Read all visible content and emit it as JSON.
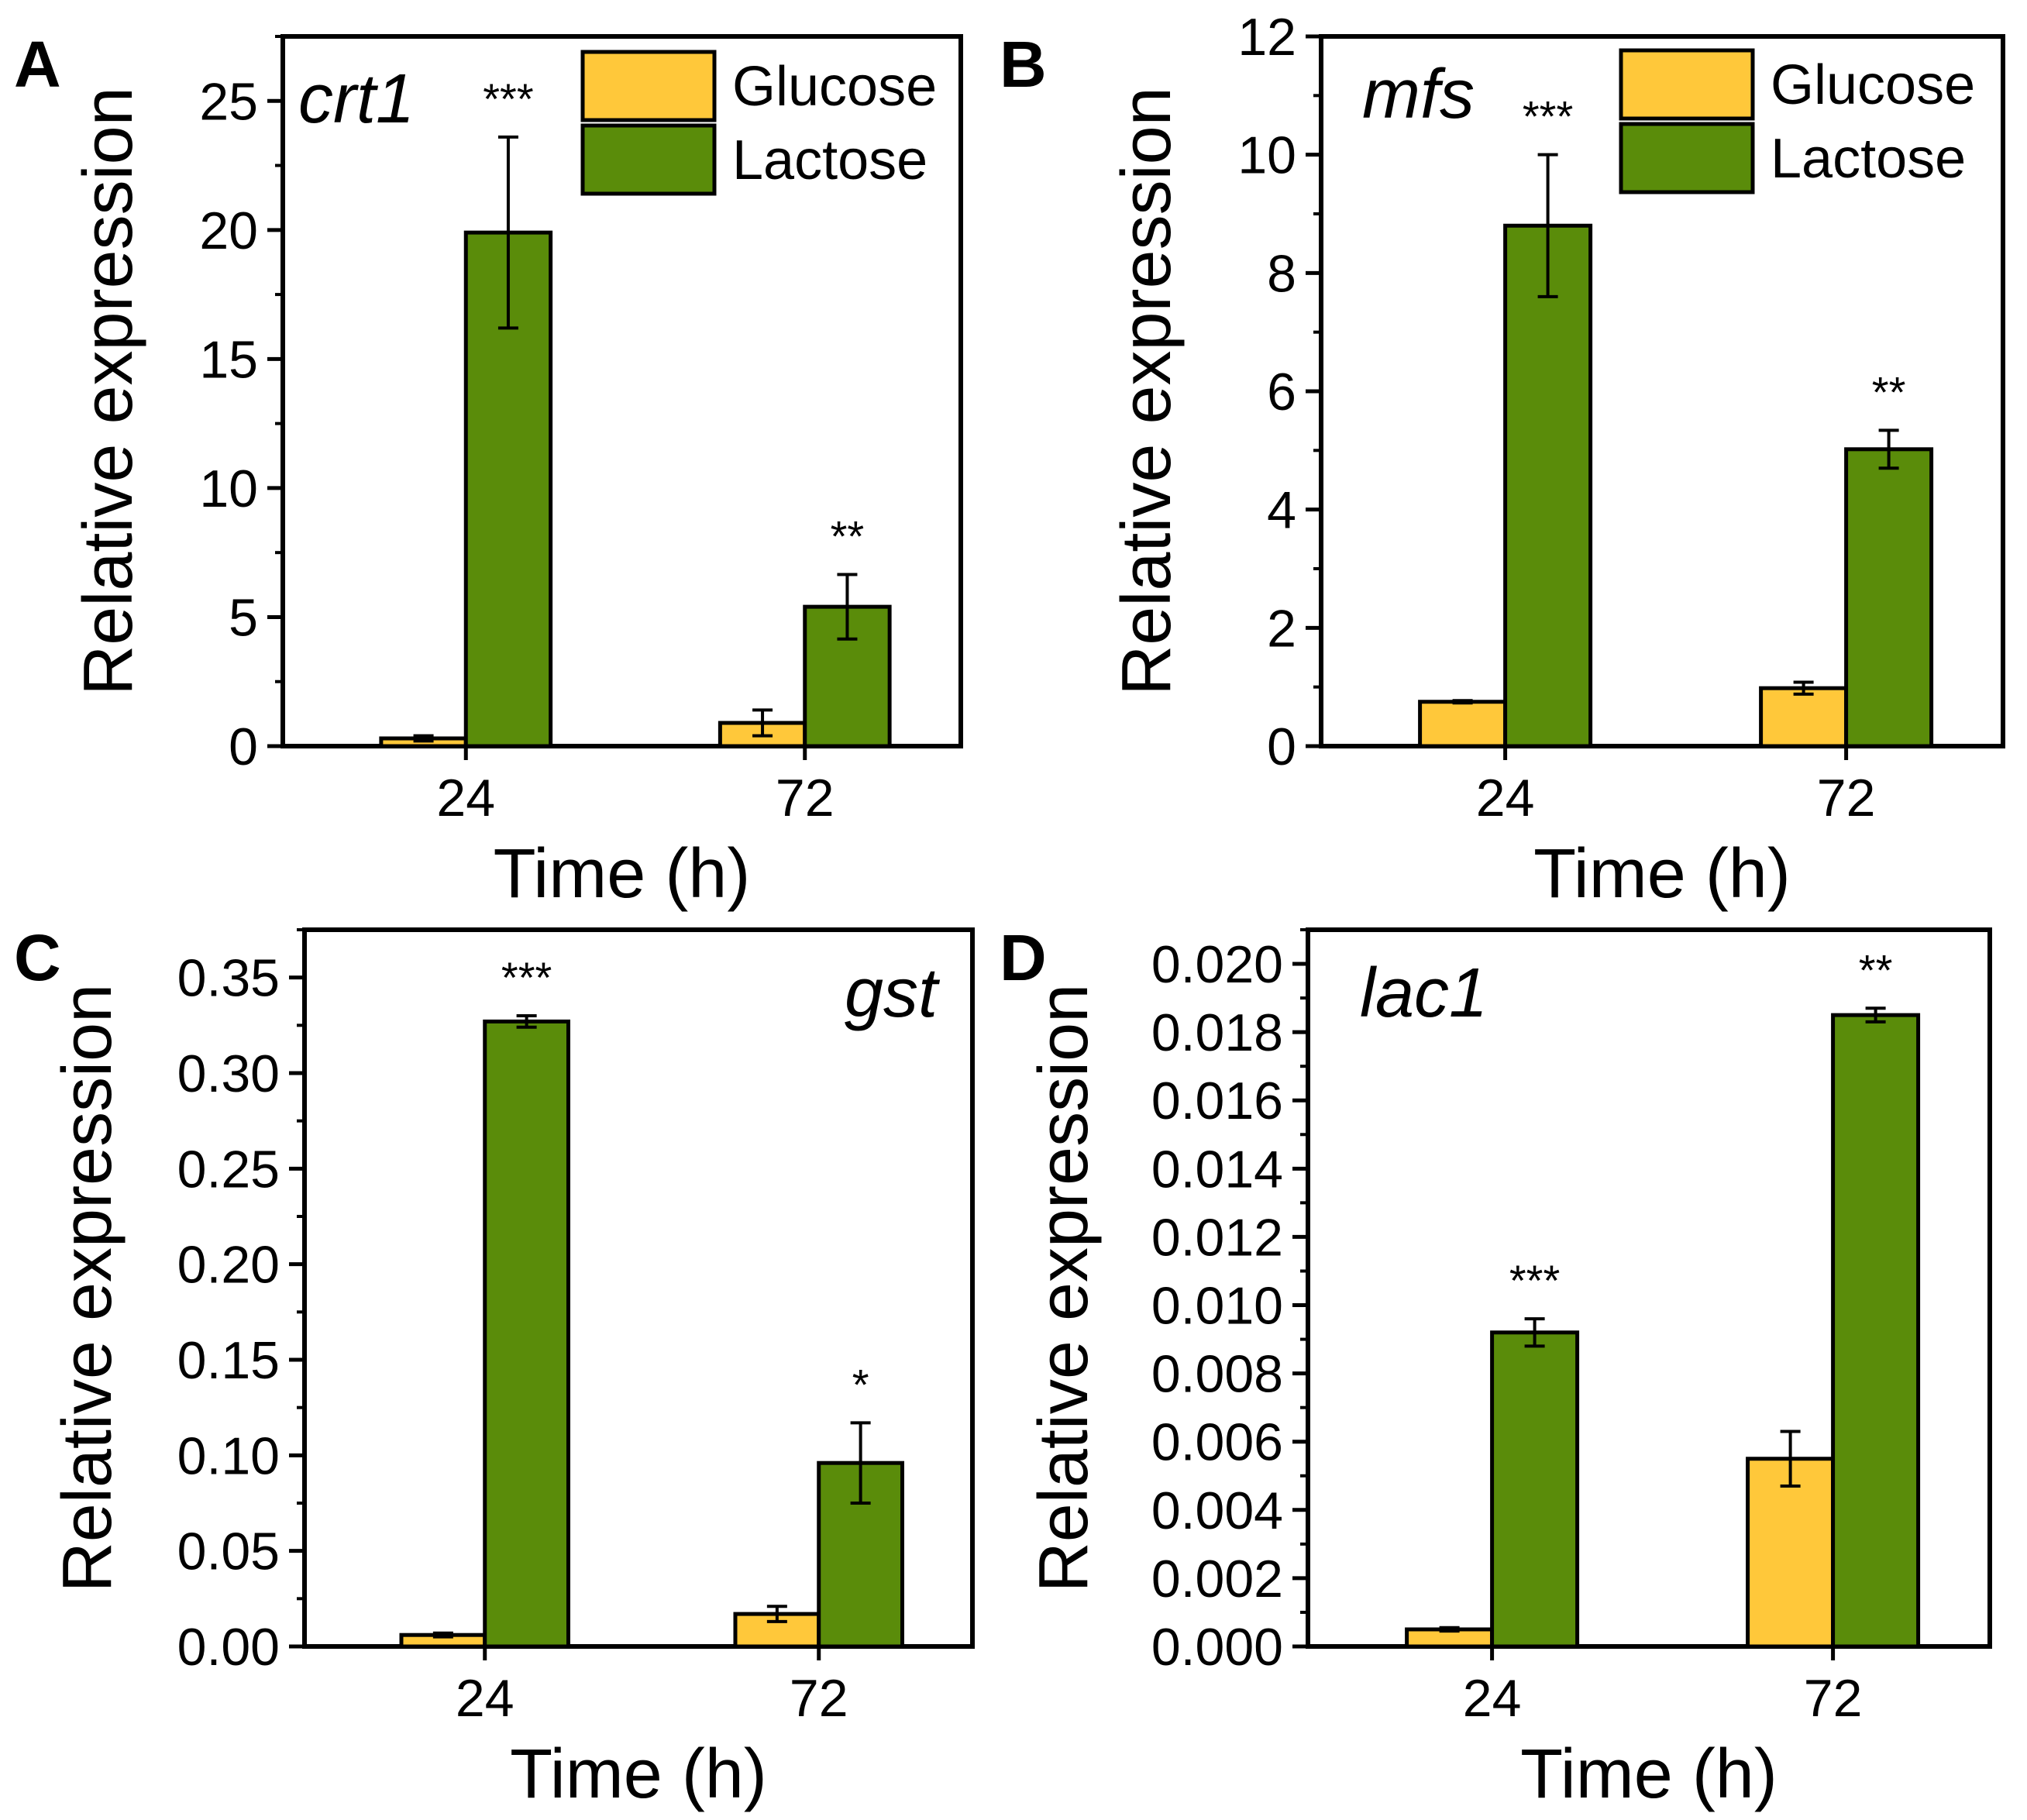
{
  "colors": {
    "glucose": "#FFC83A",
    "lactose": "#5A8C0A",
    "axis": "#000000"
  },
  "legend": {
    "glucose": "Glucose",
    "lactose": "Lactose"
  },
  "chart_data": [
    {
      "panel": "A",
      "type": "bar",
      "gene": "crt1",
      "xlabel": "Time (h)",
      "ylabel": "Relative expression",
      "categories": [
        "24",
        "72"
      ],
      "ylim": [
        0,
        27.5
      ],
      "yticks": [
        "0",
        "5",
        "10",
        "15",
        "20",
        "25"
      ],
      "ytick_values": [
        0,
        5,
        10,
        15,
        20,
        25
      ],
      "minor_step": 2.5,
      "series": [
        {
          "name": "Glucose",
          "values": [
            0.3,
            0.9
          ],
          "errors": [
            0.1,
            0.5
          ]
        },
        {
          "name": "Lactose",
          "values": [
            19.9,
            5.4
          ],
          "errors": [
            3.7,
            1.25
          ]
        }
      ],
      "significance": [
        "***",
        "**"
      ],
      "legend": true,
      "gene_position": "left"
    },
    {
      "panel": "B",
      "type": "bar",
      "gene": "mfs",
      "xlabel": "Time (h)",
      "ylabel": "Relative expression",
      "categories": [
        "24",
        "72"
      ],
      "ylim": [
        0,
        12
      ],
      "yticks": [
        "0",
        "2",
        "4",
        "6",
        "8",
        "10",
        "12"
      ],
      "ytick_values": [
        0,
        2,
        4,
        6,
        8,
        10,
        12
      ],
      "minor_step": 1,
      "series": [
        {
          "name": "Glucose",
          "values": [
            0.75,
            0.98
          ],
          "errors": [
            0.02,
            0.1
          ]
        },
        {
          "name": "Lactose",
          "values": [
            8.8,
            5.02
          ],
          "errors": [
            1.2,
            0.32
          ]
        }
      ],
      "significance": [
        "***",
        "**"
      ],
      "legend": true,
      "gene_position": "left"
    },
    {
      "panel": "C",
      "type": "bar",
      "gene": "gst",
      "xlabel": "Time (h)",
      "ylabel": "Relative expression",
      "categories": [
        "24",
        "72"
      ],
      "ylim": [
        0,
        0.375
      ],
      "yticks": [
        "0.00",
        "0.05",
        "0.10",
        "0.15",
        "0.20",
        "0.25",
        "0.30",
        "0.35"
      ],
      "ytick_values": [
        0,
        0.05,
        0.1,
        0.15,
        0.2,
        0.25,
        0.3,
        0.35
      ],
      "minor_step": 0.025,
      "series": [
        {
          "name": "Glucose",
          "values": [
            0.006,
            0.017
          ],
          "errors": [
            0.001,
            0.004
          ]
        },
        {
          "name": "Lactose",
          "values": [
            0.327,
            0.096
          ],
          "errors": [
            0.003,
            0.021
          ]
        }
      ],
      "significance": [
        "***",
        "*"
      ],
      "legend": false,
      "gene_position": "right"
    },
    {
      "panel": "D",
      "type": "bar",
      "gene": "lac1",
      "xlabel": "Time (h)",
      "ylabel": "Relative expression",
      "categories": [
        "24",
        "72"
      ],
      "ylim": [
        0,
        0.021
      ],
      "yticks": [
        "0.000",
        "0.002",
        "0.004",
        "0.006",
        "0.008",
        "0.010",
        "0.012",
        "0.014",
        "0.016",
        "0.018",
        "0.020"
      ],
      "ytick_values": [
        0,
        0.002,
        0.004,
        0.006,
        0.008,
        0.01,
        0.012,
        0.014,
        0.016,
        0.018,
        0.02
      ],
      "minor_step": 0.001,
      "series": [
        {
          "name": "Glucose",
          "values": [
            0.0005,
            0.0055
          ],
          "errors": [
            5e-05,
            0.0008
          ]
        },
        {
          "name": "Lactose",
          "values": [
            0.0092,
            0.0185
          ],
          "errors": [
            0.0004,
            0.0002
          ]
        }
      ],
      "significance": [
        "***",
        "**"
      ],
      "legend": false,
      "gene_position": "left"
    }
  ]
}
